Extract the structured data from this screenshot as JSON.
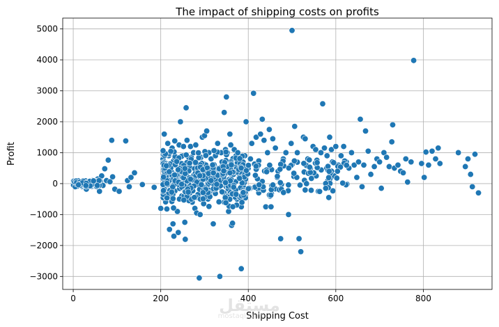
{
  "chart_data": {
    "type": "scatter",
    "title": "The impact of shipping costs on profits",
    "xlabel": "Shipping Cost",
    "ylabel": "Profit",
    "xlim": [
      -24,
      957
    ],
    "ylim": [
      -3420,
      5350
    ],
    "grid": true,
    "point_color": "#1f77b4",
    "x_ticks": [
      0,
      200,
      400,
      600,
      800
    ],
    "y_ticks": [
      -3000,
      -2000,
      -1000,
      0,
      1000,
      2000,
      3000,
      4000,
      5000
    ],
    "x_tick_labels": [
      "0",
      "200",
      "400",
      "600",
      "800"
    ],
    "y_tick_labels": [
      "−3000",
      "−2000",
      "−1000",
      "0",
      "1000",
      "2000",
      "3000",
      "4000",
      "5000"
    ],
    "points": [
      [
        0,
        0
      ],
      [
        4,
        30
      ],
      [
        8,
        -40
      ],
      [
        12,
        60
      ],
      [
        16,
        10
      ],
      [
        20,
        -90
      ],
      [
        24,
        40
      ],
      [
        28,
        90
      ],
      [
        30,
        -180
      ],
      [
        33,
        20
      ],
      [
        36,
        60
      ],
      [
        40,
        -20
      ],
      [
        44,
        100
      ],
      [
        48,
        -80
      ],
      [
        52,
        30
      ],
      [
        56,
        150
      ],
      [
        60,
        -250
      ],
      [
        62,
        80
      ],
      [
        65,
        250
      ],
      [
        68,
        -60
      ],
      [
        72,
        480
      ],
      [
        76,
        100
      ],
      [
        80,
        760
      ],
      [
        84,
        60
      ],
      [
        88,
        1400
      ],
      [
        90,
        220
      ],
      [
        95,
        -180
      ],
      [
        105,
        -250
      ],
      [
        120,
        1380
      ],
      [
        124,
        100
      ],
      [
        128,
        -100
      ],
      [
        132,
        200
      ],
      [
        140,
        350
      ],
      [
        158,
        -30
      ],
      [
        185,
        -120
      ],
      [
        200,
        -800
      ],
      [
        208,
        1600
      ],
      [
        210,
        -400
      ],
      [
        212,
        300
      ],
      [
        214,
        -820
      ],
      [
        216,
        1300
      ],
      [
        218,
        900
      ],
      [
        220,
        -1480
      ],
      [
        224,
        -500
      ],
      [
        226,
        1150
      ],
      [
        228,
        -1300
      ],
      [
        230,
        -1700
      ],
      [
        232,
        1380
      ],
      [
        235,
        750
      ],
      [
        238,
        -900
      ],
      [
        240,
        -1580
      ],
      [
        242,
        1250
      ],
      [
        245,
        2000
      ],
      [
        248,
        -400
      ],
      [
        250,
        900
      ],
      [
        252,
        1200
      ],
      [
        255,
        -1250
      ],
      [
        256,
        -1800
      ],
      [
        258,
        2450
      ],
      [
        260,
        1400
      ],
      [
        262,
        600
      ],
      [
        265,
        -150
      ],
      [
        268,
        1200
      ],
      [
        270,
        850
      ],
      [
        272,
        -600
      ],
      [
        275,
        1000
      ],
      [
        278,
        -800
      ],
      [
        280,
        1250
      ],
      [
        282,
        -950
      ],
      [
        285,
        1000
      ],
      [
        288,
        -3050
      ],
      [
        290,
        -1000
      ],
      [
        292,
        850
      ],
      [
        295,
        1500
      ],
      [
        298,
        -650
      ],
      [
        300,
        1550
      ],
      [
        302,
        900
      ],
      [
        305,
        1700
      ],
      [
        308,
        -500
      ],
      [
        310,
        1000
      ],
      [
        315,
        800
      ],
      [
        320,
        -1300
      ],
      [
        325,
        900
      ],
      [
        330,
        1300
      ],
      [
        335,
        -3000
      ],
      [
        338,
        1000
      ],
      [
        340,
        700
      ],
      [
        345,
        2300
      ],
      [
        348,
        1100
      ],
      [
        350,
        2800
      ],
      [
        352,
        1000
      ],
      [
        355,
        -900
      ],
      [
        358,
        1600
      ],
      [
        360,
        1250
      ],
      [
        362,
        -1350
      ],
      [
        364,
        -1280
      ],
      [
        368,
        1100
      ],
      [
        372,
        900
      ],
      [
        376,
        1000
      ],
      [
        380,
        -500
      ],
      [
        384,
        -2750
      ],
      [
        388,
        700
      ],
      [
        392,
        900
      ],
      [
        395,
        2000
      ],
      [
        400,
        500
      ],
      [
        405,
        800
      ],
      [
        408,
        1300
      ],
      [
        412,
        2920
      ],
      [
        418,
        1500
      ],
      [
        424,
        -300
      ],
      [
        428,
        1600
      ],
      [
        432,
        2080
      ],
      [
        436,
        1400
      ],
      [
        440,
        -750
      ],
      [
        444,
        1000
      ],
      [
        448,
        1750
      ],
      [
        452,
        -750
      ],
      [
        456,
        1450
      ],
      [
        462,
        1150
      ],
      [
        468,
        400
      ],
      [
        474,
        -1780
      ],
      [
        480,
        800
      ],
      [
        486,
        1000
      ],
      [
        492,
        -1000
      ],
      [
        498,
        1300
      ],
      [
        500,
        4950
      ],
      [
        506,
        1850
      ],
      [
        512,
        1000
      ],
      [
        516,
        -1780
      ],
      [
        520,
        -2200
      ],
      [
        526,
        1500
      ],
      [
        530,
        1450
      ],
      [
        536,
        800
      ],
      [
        542,
        500
      ],
      [
        548,
        1200
      ],
      [
        554,
        1100
      ],
      [
        560,
        -250
      ],
      [
        566,
        1000
      ],
      [
        570,
        2580
      ],
      [
        574,
        1150
      ],
      [
        580,
        900
      ],
      [
        584,
        -450
      ],
      [
        586,
        1500
      ],
      [
        590,
        1100
      ],
      [
        596,
        250
      ],
      [
        600,
        1200
      ],
      [
        606,
        600
      ],
      [
        612,
        900
      ],
      [
        618,
        1200
      ],
      [
        624,
        700
      ],
      [
        630,
        500
      ],
      [
        636,
        1000
      ],
      [
        642,
        600
      ],
      [
        648,
        200
      ],
      [
        652,
        700
      ],
      [
        656,
        2080
      ],
      [
        660,
        -100
      ],
      [
        664,
        600
      ],
      [
        668,
        1700
      ],
      [
        674,
        1050
      ],
      [
        680,
        300
      ],
      [
        688,
        550
      ],
      [
        694,
        800
      ],
      [
        700,
        700
      ],
      [
        704,
        -150
      ],
      [
        710,
        1000
      ],
      [
        716,
        850
      ],
      [
        722,
        550
      ],
      [
        728,
        1350
      ],
      [
        730,
        1900
      ],
      [
        734,
        500
      ],
      [
        742,
        600
      ],
      [
        748,
        400
      ],
      [
        754,
        350
      ],
      [
        760,
        800
      ],
      [
        764,
        50
      ],
      [
        772,
        700
      ],
      [
        778,
        3980
      ],
      [
        796,
        650
      ],
      [
        802,
        200
      ],
      [
        806,
        1020
      ],
      [
        812,
        600
      ],
      [
        820,
        1050
      ],
      [
        828,
        800
      ],
      [
        834,
        1150
      ],
      [
        838,
        650
      ],
      [
        880,
        1000
      ],
      [
        896,
        550
      ],
      [
        902,
        800
      ],
      [
        908,
        300
      ],
      [
        912,
        -100
      ],
      [
        918,
        950
      ],
      [
        926,
        -300
      ]
    ]
  },
  "watermark": {
    "logo_text": "مستقل",
    "sub_text": "mostaql.com"
  }
}
